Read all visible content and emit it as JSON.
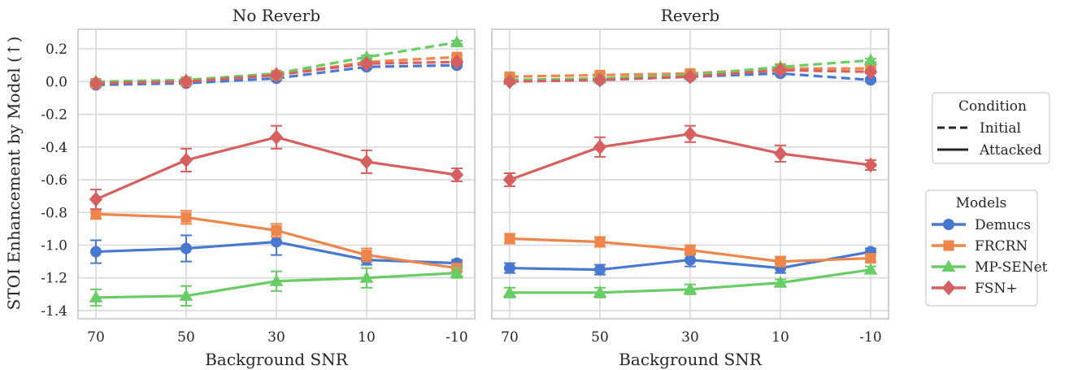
{
  "chart_data": {
    "type": "line",
    "ylabel": "STOI Enhancement by Model (↑)",
    "ylim": [
      -1.45,
      0.32
    ],
    "yticks": [
      "0.2",
      "0.0",
      "-0.2",
      "-0.4",
      "-0.6",
      "-0.8",
      "-1.0",
      "-1.2",
      "-1.4"
    ],
    "ytick_values": [
      0.2,
      0.0,
      -0.2,
      -0.4,
      -0.6,
      -0.8,
      -1.0,
      -1.2,
      -1.4
    ],
    "categories": [
      "70",
      "50",
      "30",
      "10",
      "-10"
    ],
    "grid": true,
    "legend_condition": {
      "title": "Condition",
      "entries": [
        {
          "label": "Initial",
          "style": "dashed"
        },
        {
          "label": "Attacked",
          "style": "solid"
        }
      ]
    },
    "legend_models": {
      "title": "Models",
      "entries": [
        {
          "label": "Demucs",
          "color": "#4878d0",
          "marker": "circle"
        },
        {
          "label": "FRCRN",
          "color": "#ee854a",
          "marker": "square"
        },
        {
          "label": "MP-SENet",
          "color": "#6acc64",
          "marker": "triangle"
        },
        {
          "label": "FSN+",
          "color": "#d65f5f",
          "marker": "diamond"
        }
      ]
    },
    "panels": [
      {
        "title": "No Reverb",
        "xlabel": "Background SNR",
        "series": [
          {
            "name": "Demucs",
            "condition": "Initial",
            "values": [
              -0.02,
              -0.01,
              0.02,
              0.09,
              0.1
            ],
            "err": [
              0.01,
              0.01,
              0.01,
              0.01,
              0.01
            ]
          },
          {
            "name": "FRCRN",
            "condition": "Initial",
            "values": [
              -0.01,
              0.0,
              0.04,
              0.12,
              0.15
            ],
            "err": [
              0.01,
              0.01,
              0.01,
              0.01,
              0.01
            ]
          },
          {
            "name": "MP-SENet",
            "condition": "Initial",
            "values": [
              0.0,
              0.01,
              0.05,
              0.15,
              0.24
            ],
            "err": [
              0.01,
              0.01,
              0.01,
              0.01,
              0.01
            ]
          },
          {
            "name": "FSN+",
            "condition": "Initial",
            "values": [
              -0.01,
              0.0,
              0.04,
              0.11,
              0.12
            ],
            "err": [
              0.01,
              0.01,
              0.01,
              0.01,
              0.01
            ]
          },
          {
            "name": "Demucs",
            "condition": "Attacked",
            "values": [
              -1.04,
              -1.02,
              -0.98,
              -1.09,
              -1.11
            ],
            "err": [
              0.07,
              0.08,
              0.08,
              0.03,
              0.02
            ]
          },
          {
            "name": "FRCRN",
            "condition": "Attacked",
            "values": [
              -0.81,
              -0.83,
              -0.91,
              -1.06,
              -1.14
            ],
            "err": [
              0.03,
              0.04,
              0.04,
              0.04,
              0.02
            ]
          },
          {
            "name": "MP-SENet",
            "condition": "Attacked",
            "values": [
              -1.32,
              -1.31,
              -1.22,
              -1.2,
              -1.17
            ],
            "err": [
              0.05,
              0.06,
              0.06,
              0.06,
              0.03
            ]
          },
          {
            "name": "FSN+",
            "condition": "Attacked",
            "values": [
              -0.72,
              -0.48,
              -0.34,
              -0.49,
              -0.57
            ],
            "err": [
              0.06,
              0.07,
              0.07,
              0.07,
              0.04
            ]
          }
        ]
      },
      {
        "title": "Reverb",
        "xlabel": "Background SNR",
        "series": [
          {
            "name": "Demucs",
            "condition": "Initial",
            "values": [
              0.01,
              0.01,
              0.03,
              0.05,
              0.01
            ],
            "err": [
              0.01,
              0.01,
              0.01,
              0.01,
              0.01
            ]
          },
          {
            "name": "FRCRN",
            "condition": "Initial",
            "values": [
              0.03,
              0.04,
              0.05,
              0.08,
              0.08
            ],
            "err": [
              0.01,
              0.01,
              0.01,
              0.01,
              0.01
            ]
          },
          {
            "name": "MP-SENet",
            "condition": "Initial",
            "values": [
              0.01,
              0.02,
              0.04,
              0.09,
              0.13
            ],
            "err": [
              0.01,
              0.01,
              0.01,
              0.01,
              0.01
            ]
          },
          {
            "name": "FSN+",
            "condition": "Initial",
            "values": [
              0.0,
              0.01,
              0.03,
              0.07,
              0.06
            ],
            "err": [
              0.01,
              0.01,
              0.01,
              0.01,
              0.01
            ]
          },
          {
            "name": "Demucs",
            "condition": "Attacked",
            "values": [
              -1.14,
              -1.15,
              -1.09,
              -1.14,
              -1.04
            ],
            "err": [
              0.03,
              0.03,
              0.04,
              0.03,
              0.02
            ]
          },
          {
            "name": "FRCRN",
            "condition": "Attacked",
            "values": [
              -0.96,
              -0.98,
              -1.03,
              -1.1,
              -1.08
            ],
            "err": [
              0.03,
              0.03,
              0.03,
              0.03,
              0.02
            ]
          },
          {
            "name": "MP-SENet",
            "condition": "Attacked",
            "values": [
              -1.29,
              -1.29,
              -1.27,
              -1.23,
              -1.15
            ],
            "err": [
              0.03,
              0.03,
              0.03,
              0.02,
              0.02
            ]
          },
          {
            "name": "FSN+",
            "condition": "Attacked",
            "values": [
              -0.6,
              -0.4,
              -0.32,
              -0.44,
              -0.51
            ],
            "err": [
              0.04,
              0.06,
              0.05,
              0.05,
              0.03
            ]
          }
        ]
      }
    ]
  }
}
